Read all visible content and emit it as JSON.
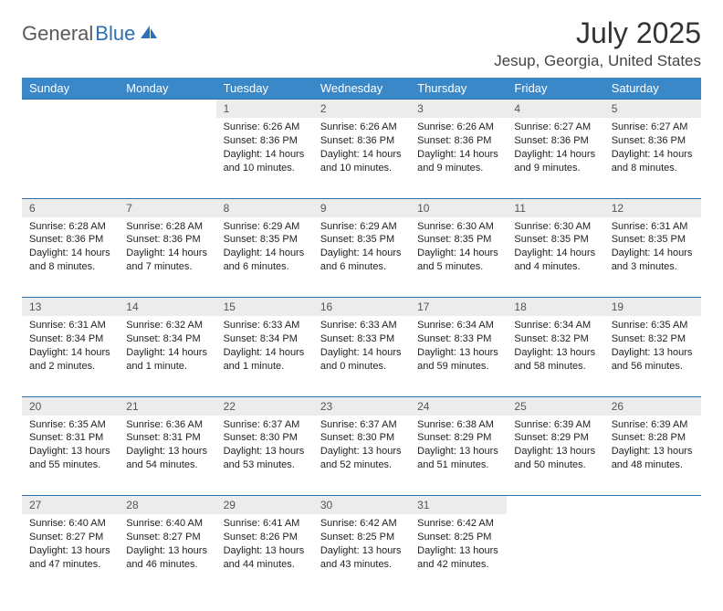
{
  "brand": {
    "part1": "General",
    "part2": "Blue"
  },
  "header": {
    "title": "July 2025",
    "location": "Jesup, Georgia, United States"
  },
  "colors": {
    "header_bg": "#3b88c8",
    "header_text": "#ffffff",
    "daynum_bg": "#ececec",
    "border": "#2b6fb5",
    "brand_gray": "#5a5a5a",
    "brand_blue": "#2b6fb5"
  },
  "calendar": {
    "day_headers": [
      "Sunday",
      "Monday",
      "Tuesday",
      "Wednesday",
      "Thursday",
      "Friday",
      "Saturday"
    ],
    "weeks": [
      [
        null,
        null,
        {
          "n": "1",
          "sunrise": "6:26 AM",
          "sunset": "8:36 PM",
          "daylight": "14 hours and 10 minutes."
        },
        {
          "n": "2",
          "sunrise": "6:26 AM",
          "sunset": "8:36 PM",
          "daylight": "14 hours and 10 minutes."
        },
        {
          "n": "3",
          "sunrise": "6:26 AM",
          "sunset": "8:36 PM",
          "daylight": "14 hours and 9 minutes."
        },
        {
          "n": "4",
          "sunrise": "6:27 AM",
          "sunset": "8:36 PM",
          "daylight": "14 hours and 9 minutes."
        },
        {
          "n": "5",
          "sunrise": "6:27 AM",
          "sunset": "8:36 PM",
          "daylight": "14 hours and 8 minutes."
        }
      ],
      [
        {
          "n": "6",
          "sunrise": "6:28 AM",
          "sunset": "8:36 PM",
          "daylight": "14 hours and 8 minutes."
        },
        {
          "n": "7",
          "sunrise": "6:28 AM",
          "sunset": "8:36 PM",
          "daylight": "14 hours and 7 minutes."
        },
        {
          "n": "8",
          "sunrise": "6:29 AM",
          "sunset": "8:35 PM",
          "daylight": "14 hours and 6 minutes."
        },
        {
          "n": "9",
          "sunrise": "6:29 AM",
          "sunset": "8:35 PM",
          "daylight": "14 hours and 6 minutes."
        },
        {
          "n": "10",
          "sunrise": "6:30 AM",
          "sunset": "8:35 PM",
          "daylight": "14 hours and 5 minutes."
        },
        {
          "n": "11",
          "sunrise": "6:30 AM",
          "sunset": "8:35 PM",
          "daylight": "14 hours and 4 minutes."
        },
        {
          "n": "12",
          "sunrise": "6:31 AM",
          "sunset": "8:35 PM",
          "daylight": "14 hours and 3 minutes."
        }
      ],
      [
        {
          "n": "13",
          "sunrise": "6:31 AM",
          "sunset": "8:34 PM",
          "daylight": "14 hours and 2 minutes."
        },
        {
          "n": "14",
          "sunrise": "6:32 AM",
          "sunset": "8:34 PM",
          "daylight": "14 hours and 1 minute."
        },
        {
          "n": "15",
          "sunrise": "6:33 AM",
          "sunset": "8:34 PM",
          "daylight": "14 hours and 1 minute."
        },
        {
          "n": "16",
          "sunrise": "6:33 AM",
          "sunset": "8:33 PM",
          "daylight": "14 hours and 0 minutes."
        },
        {
          "n": "17",
          "sunrise": "6:34 AM",
          "sunset": "8:33 PM",
          "daylight": "13 hours and 59 minutes."
        },
        {
          "n": "18",
          "sunrise": "6:34 AM",
          "sunset": "8:32 PM",
          "daylight": "13 hours and 58 minutes."
        },
        {
          "n": "19",
          "sunrise": "6:35 AM",
          "sunset": "8:32 PM",
          "daylight": "13 hours and 56 minutes."
        }
      ],
      [
        {
          "n": "20",
          "sunrise": "6:35 AM",
          "sunset": "8:31 PM",
          "daylight": "13 hours and 55 minutes."
        },
        {
          "n": "21",
          "sunrise": "6:36 AM",
          "sunset": "8:31 PM",
          "daylight": "13 hours and 54 minutes."
        },
        {
          "n": "22",
          "sunrise": "6:37 AM",
          "sunset": "8:30 PM",
          "daylight": "13 hours and 53 minutes."
        },
        {
          "n": "23",
          "sunrise": "6:37 AM",
          "sunset": "8:30 PM",
          "daylight": "13 hours and 52 minutes."
        },
        {
          "n": "24",
          "sunrise": "6:38 AM",
          "sunset": "8:29 PM",
          "daylight": "13 hours and 51 minutes."
        },
        {
          "n": "25",
          "sunrise": "6:39 AM",
          "sunset": "8:29 PM",
          "daylight": "13 hours and 50 minutes."
        },
        {
          "n": "26",
          "sunrise": "6:39 AM",
          "sunset": "8:28 PM",
          "daylight": "13 hours and 48 minutes."
        }
      ],
      [
        {
          "n": "27",
          "sunrise": "6:40 AM",
          "sunset": "8:27 PM",
          "daylight": "13 hours and 47 minutes."
        },
        {
          "n": "28",
          "sunrise": "6:40 AM",
          "sunset": "8:27 PM",
          "daylight": "13 hours and 46 minutes."
        },
        {
          "n": "29",
          "sunrise": "6:41 AM",
          "sunset": "8:26 PM",
          "daylight": "13 hours and 44 minutes."
        },
        {
          "n": "30",
          "sunrise": "6:42 AM",
          "sunset": "8:25 PM",
          "daylight": "13 hours and 43 minutes."
        },
        {
          "n": "31",
          "sunrise": "6:42 AM",
          "sunset": "8:25 PM",
          "daylight": "13 hours and 42 minutes."
        },
        null,
        null
      ]
    ]
  },
  "labels": {
    "sunrise": "Sunrise:",
    "sunset": "Sunset:",
    "daylight": "Daylight:"
  }
}
